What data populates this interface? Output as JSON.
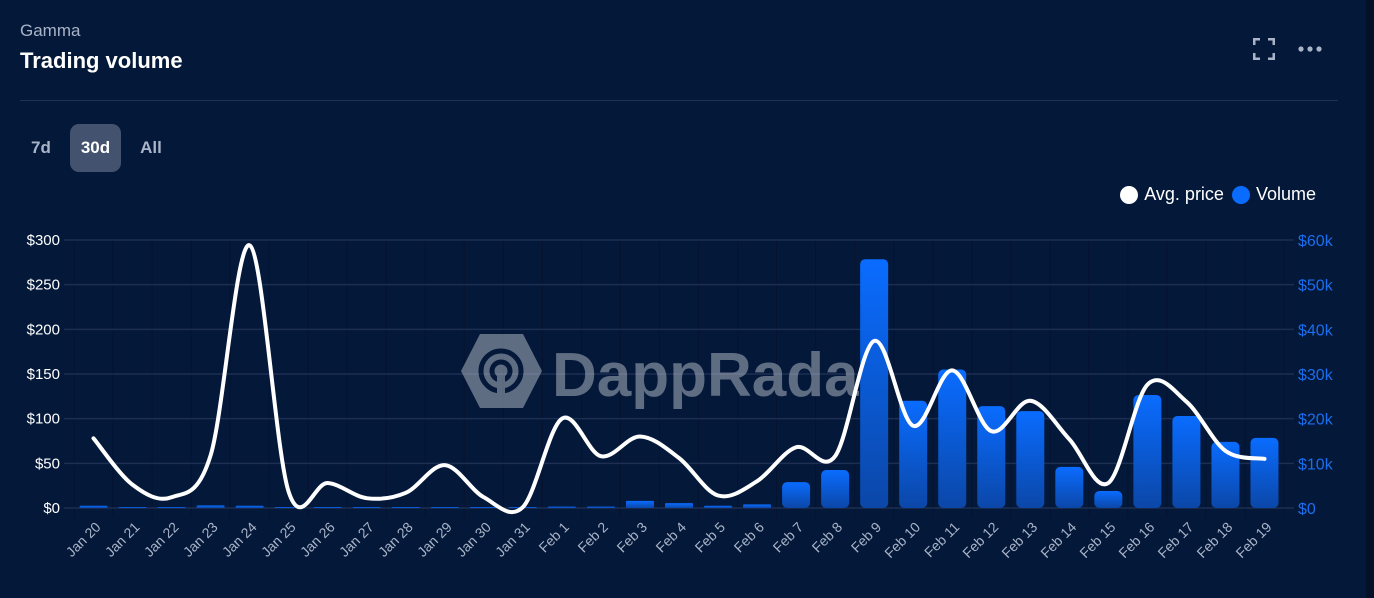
{
  "header": {
    "subtitle": "Gamma",
    "title": "Trading volume",
    "icons": [
      "fullscreen-icon",
      "more-options-icon"
    ]
  },
  "ranges": [
    {
      "label": "7d",
      "active": false
    },
    {
      "label": "30d",
      "active": true
    },
    {
      "label": "All",
      "active": false
    }
  ],
  "legend": [
    {
      "label": "Avg. price",
      "color": "#ffffff"
    },
    {
      "label": "Volume",
      "color": "#0a6cff"
    }
  ],
  "watermark": "DappRadar",
  "colors": {
    "background": "#041839",
    "grid": "#1c2f52",
    "bar_top": "#0a6cff",
    "bar_bottom": "#0b47a8",
    "line": "#ffffff",
    "right_axis": "#1a6ef0"
  },
  "chart_data": {
    "type": "bar+line",
    "title": "Trading volume",
    "categories": [
      "Jan 20",
      "Jan 21",
      "Jan 22",
      "Jan 23",
      "Jan 24",
      "Jan 25",
      "Jan 26",
      "Jan 27",
      "Jan 28",
      "Jan 29",
      "Jan 30",
      "Jan 31",
      "Feb 1",
      "Feb 2",
      "Feb 3",
      "Feb 4",
      "Feb 5",
      "Feb 6",
      "Feb 7",
      "Feb 8",
      "Feb 9",
      "Feb 10",
      "Feb 11",
      "Feb 12",
      "Feb 13",
      "Feb 14",
      "Feb 15",
      "Feb 16",
      "Feb 17",
      "Feb 18",
      "Feb 19"
    ],
    "series": [
      {
        "name": "Avg. price",
        "type": "line",
        "axis": "left",
        "unit": "$",
        "values": [
          78,
          26,
          12,
          59,
          294,
          18,
          28,
          11,
          17,
          48,
          12,
          1,
          100,
          58,
          80,
          56,
          14,
          30,
          68,
          58,
          187,
          92,
          154,
          86,
          120,
          77,
          28,
          138,
          119,
          64,
          55
        ]
      },
      {
        "name": "Volume",
        "type": "bar",
        "axis": "right",
        "unit": "$k",
        "values": [
          0.5,
          0.1,
          0.1,
          0.6,
          0.5,
          0.1,
          0.1,
          0,
          0,
          0,
          0.1,
          0.1,
          0.3,
          0.3,
          1.6,
          1.1,
          0.5,
          0.8,
          5.8,
          8.5,
          55.7,
          24,
          31,
          22.8,
          21.7,
          9.2,
          3.8,
          25.3,
          20.6,
          14.8,
          15.7
        ]
      }
    ],
    "left_axis": {
      "ticks": [
        "$0",
        "$50",
        "$100",
        "$150",
        "$200",
        "$250",
        "$300"
      ],
      "range": [
        0,
        300
      ]
    },
    "right_axis": {
      "ticks": [
        "$0",
        "$10k",
        "$20k",
        "$30k",
        "$40k",
        "$50k",
        "$60k"
      ],
      "range": [
        0,
        60
      ]
    },
    "grid": true,
    "legend_position": "top-right"
  }
}
